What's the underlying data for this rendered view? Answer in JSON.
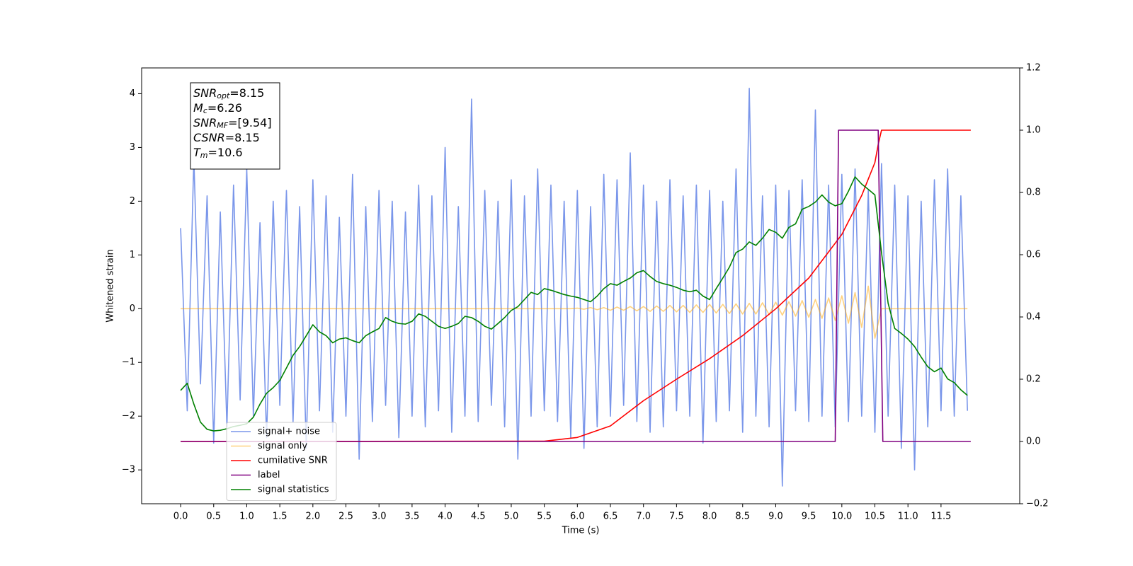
{
  "chart_data": {
    "type": "line",
    "xlabel": "Time (s)",
    "ylabel": "Whitened strain",
    "xlim": [
      -0.59,
      12.69
    ],
    "ylim": [
      -3.63,
      4.48
    ],
    "y2lim": [
      -0.2,
      1.2
    ],
    "xticks": [
      {
        "value": 0,
        "label": "0.0"
      },
      0.5,
      {
        "value": 1,
        "label": "1.0"
      },
      1.5,
      {
        "value": 2,
        "label": "2.0"
      },
      2.5,
      {
        "value": 3,
        "label": "3.0"
      },
      3.5,
      {
        "value": 4,
        "label": "4.0"
      },
      4.5,
      {
        "value": 5,
        "label": "5.0"
      },
      5.5,
      {
        "value": 6,
        "label": "6.0"
      },
      6.5,
      {
        "value": 7,
        "label": "7.0"
      },
      7.5,
      {
        "value": 8,
        "label": "8.0"
      },
      8.5,
      {
        "value": 9,
        "label": "9.0"
      },
      9.5,
      {
        "value": 10,
        "label": "10.0"
      },
      10.5,
      {
        "value": 11,
        "label": "11.0"
      },
      11.5
    ],
    "yticks": [
      {
        "value": -3,
        "label": "−3"
      },
      {
        "value": -2,
        "label": "−2"
      },
      {
        "value": -1,
        "label": "−1"
      },
      0,
      1,
      2,
      3,
      4
    ],
    "y2ticks": [
      {
        "value": -0.2,
        "label": "−0.2"
      },
      {
        "value": 0,
        "label": "0.0"
      },
      0.2,
      0.4,
      0.6,
      0.8,
      {
        "value": 1,
        "label": "1.0"
      },
      1.2
    ],
    "legend": "lower left",
    "annotation": [
      {
        "base": "SNR",
        "sub": "opt",
        "text": "=8.15"
      },
      {
        "base": "M",
        "sub": "c",
        "text": "=6.26"
      },
      {
        "base": "SNR",
        "sub": "MF",
        "text": "=[9.54]"
      },
      {
        "base": "CSNR",
        "sub": null,
        "text": "=8.15"
      },
      {
        "base": "T",
        "sub": "m",
        "text": "=10.6"
      }
    ],
    "x": [
      0,
      0.1,
      0.2,
      0.3,
      0.4,
      0.5,
      0.6,
      0.7,
      0.8,
      0.9,
      1,
      1.1,
      1.2,
      1.3,
      1.4,
      1.5,
      1.6,
      1.7,
      1.8,
      1.9,
      2,
      2.1,
      2.2,
      2.3,
      2.4,
      2.5,
      2.6,
      2.7,
      2.8,
      2.9,
      3,
      3.1,
      3.2,
      3.3,
      3.4,
      3.5,
      3.6,
      3.7,
      3.8,
      3.9,
      4,
      4.1,
      4.2,
      4.3,
      4.4,
      4.5,
      4.6,
      4.7,
      4.8,
      4.9,
      5,
      5.1,
      5.2,
      5.3,
      5.4,
      5.5,
      5.6,
      5.7,
      5.8,
      5.9,
      6,
      6.1,
      6.2,
      6.3,
      6.4,
      6.5,
      6.6,
      6.7,
      6.8,
      6.9,
      7,
      7.1,
      7.2,
      7.3,
      7.4,
      7.5,
      7.6,
      7.7,
      7.8,
      7.9,
      8,
      8.1,
      8.2,
      8.3,
      8.4,
      8.5,
      8.6,
      8.7,
      8.8,
      8.9,
      9,
      9.1,
      9.2,
      9.3,
      9.4,
      9.5,
      9.6,
      9.7,
      9.8,
      9.9,
      10,
      10.1,
      10.2,
      10.3,
      10.4,
      10.5,
      10.6,
      10.7,
      10.8,
      10.9,
      11,
      11.1,
      11.2,
      11.3,
      11.4,
      11.5,
      11.6,
      11.7,
      11.8,
      11.9
    ],
    "series": [
      {
        "name": "signal+ noise",
        "color": "#4169e1",
        "opacity": 0.7,
        "values": [
          1.5,
          -1.9,
          2.8,
          -1.4,
          2.1,
          -2.5,
          1.8,
          -2.2,
          2.3,
          -1.7,
          2.6,
          -2.0,
          1.6,
          -2.4,
          2.0,
          -1.8,
          2.2,
          -2.1,
          1.9,
          -2.6,
          2.4,
          -1.9,
          2.1,
          -2.3,
          1.7,
          -2.0,
          2.5,
          -2.8,
          1.9,
          -2.1,
          2.2,
          -1.8,
          2.0,
          -2.4,
          1.8,
          -2.0,
          2.3,
          -2.2,
          2.1,
          -1.9,
          3.0,
          -2.3,
          1.9,
          -2.0,
          3.9,
          -2.1,
          2.2,
          -1.8,
          2.0,
          -2.2,
          2.4,
          -2.8,
          2.1,
          -2.0,
          2.6,
          -1.9,
          2.3,
          -2.1,
          2.0,
          -2.4,
          2.2,
          -2.6,
          1.9,
          -2.2,
          2.5,
          -2.0,
          2.4,
          -1.8,
          2.9,
          -2.1,
          2.3,
          -2.3,
          2.0,
          -2.2,
          2.4,
          -1.9,
          2.1,
          -2.0,
          2.3,
          -2.5,
          2.2,
          -2.1,
          2.0,
          -1.9,
          2.6,
          -2.3,
          4.1,
          -2.0,
          2.1,
          -2.2,
          2.3,
          -3.3,
          2.2,
          -1.9,
          2.4,
          -2.1,
          3.7,
          -2.0,
          2.3,
          -2.2,
          2.5,
          -2.1,
          2.6,
          -2.0,
          2.2,
          -2.3,
          2.7,
          -2.0,
          2.3,
          -2.6,
          2.1,
          -3.0,
          2.0,
          -2.2,
          2.4,
          -1.9,
          2.6,
          -2.0,
          2.1,
          -1.9
        ]
      },
      {
        "name": "signal only",
        "color": "#ffa500",
        "opacity": 0.5,
        "values": [
          0,
          0,
          0,
          0,
          0,
          0,
          0,
          0,
          0,
          0,
          0,
          0,
          0,
          0,
          0,
          0,
          0,
          0,
          0,
          0,
          0,
          0,
          0,
          0,
          0,
          0,
          0,
          0,
          0,
          0,
          0,
          0,
          0,
          0,
          0,
          0,
          0,
          0,
          0,
          0,
          0,
          0,
          0,
          0,
          0,
          0,
          0,
          0,
          0,
          0,
          0,
          0,
          0,
          0,
          0,
          0,
          0,
          0,
          0,
          0,
          0.01,
          -0.01,
          0.02,
          -0.02,
          0.02,
          -0.03,
          0.03,
          -0.03,
          0.04,
          -0.04,
          0.04,
          -0.05,
          0.05,
          -0.05,
          0.06,
          -0.06,
          0.06,
          -0.07,
          0.07,
          -0.07,
          0.08,
          -0.08,
          0.08,
          -0.09,
          0.09,
          -0.1,
          0.1,
          -0.1,
          0.11,
          -0.11,
          0.12,
          -0.12,
          0.13,
          -0.14,
          0.15,
          -0.16,
          0.17,
          -0.18,
          0.2,
          -0.22,
          0.24,
          -0.27,
          0.3,
          -0.35,
          0.42,
          -0.55,
          0,
          0,
          0,
          0,
          0,
          0,
          0,
          0,
          0,
          0,
          0,
          0,
          0,
          0
        ]
      },
      {
        "name": "cumilative SNR",
        "color": "#ff0000",
        "axis": "y2",
        "x": [
          0,
          5.5,
          6,
          6.5,
          7,
          7.5,
          8,
          8.5,
          9,
          9.5,
          10,
          10.3,
          10.5,
          10.55,
          10.6,
          11.95
        ],
        "values": [
          0,
          0.001,
          0.013,
          0.05,
          0.131,
          0.2,
          0.266,
          0.34,
          0.426,
          0.525,
          0.665,
          0.79,
          0.896,
          0.954,
          1,
          1
        ]
      },
      {
        "name": "label",
        "color": "#800080",
        "axis": "y2",
        "x": [
          0,
          9.9,
          9.95,
          10.55,
          10.62,
          11.95
        ],
        "values": [
          0,
          0,
          1,
          1,
          0,
          0
        ]
      },
      {
        "name": "signal statistics",
        "color": "#008000",
        "axis": "y2",
        "values": [
          0.164,
          0.187,
          0.12,
          0.062,
          0.039,
          0.034,
          0.036,
          0.041,
          0.048,
          0.052,
          0.057,
          0.078,
          0.12,
          0.155,
          0.173,
          0.196,
          0.236,
          0.277,
          0.305,
          0.34,
          0.375,
          0.352,
          0.34,
          0.317,
          0.329,
          0.333,
          0.324,
          0.317,
          0.34,
          0.352,
          0.363,
          0.398,
          0.386,
          0.379,
          0.377,
          0.386,
          0.41,
          0.402,
          0.386,
          0.37,
          0.363,
          0.37,
          0.379,
          0.402,
          0.398,
          0.386,
          0.37,
          0.361,
          0.379,
          0.398,
          0.421,
          0.433,
          0.456,
          0.479,
          0.472,
          0.491,
          0.486,
          0.479,
          0.472,
          0.467,
          0.463,
          0.456,
          0.449,
          0.467,
          0.491,
          0.507,
          0.502,
          0.514,
          0.525,
          0.542,
          0.549,
          0.53,
          0.514,
          0.507,
          0.502,
          0.495,
          0.486,
          0.481,
          0.486,
          0.467,
          0.456,
          0.491,
          0.525,
          0.56,
          0.607,
          0.618,
          0.641,
          0.63,
          0.653,
          0.681,
          0.672,
          0.653,
          0.688,
          0.699,
          0.746,
          0.755,
          0.769,
          0.792,
          0.769,
          0.757,
          0.764,
          0.804,
          0.85,
          0.827,
          0.81,
          0.792,
          0.607,
          0.444,
          0.363,
          0.347,
          0.329,
          0.305,
          0.271,
          0.24,
          0.224,
          0.236,
          0.201,
          0.189,
          0.166,
          0.148
        ]
      }
    ]
  }
}
